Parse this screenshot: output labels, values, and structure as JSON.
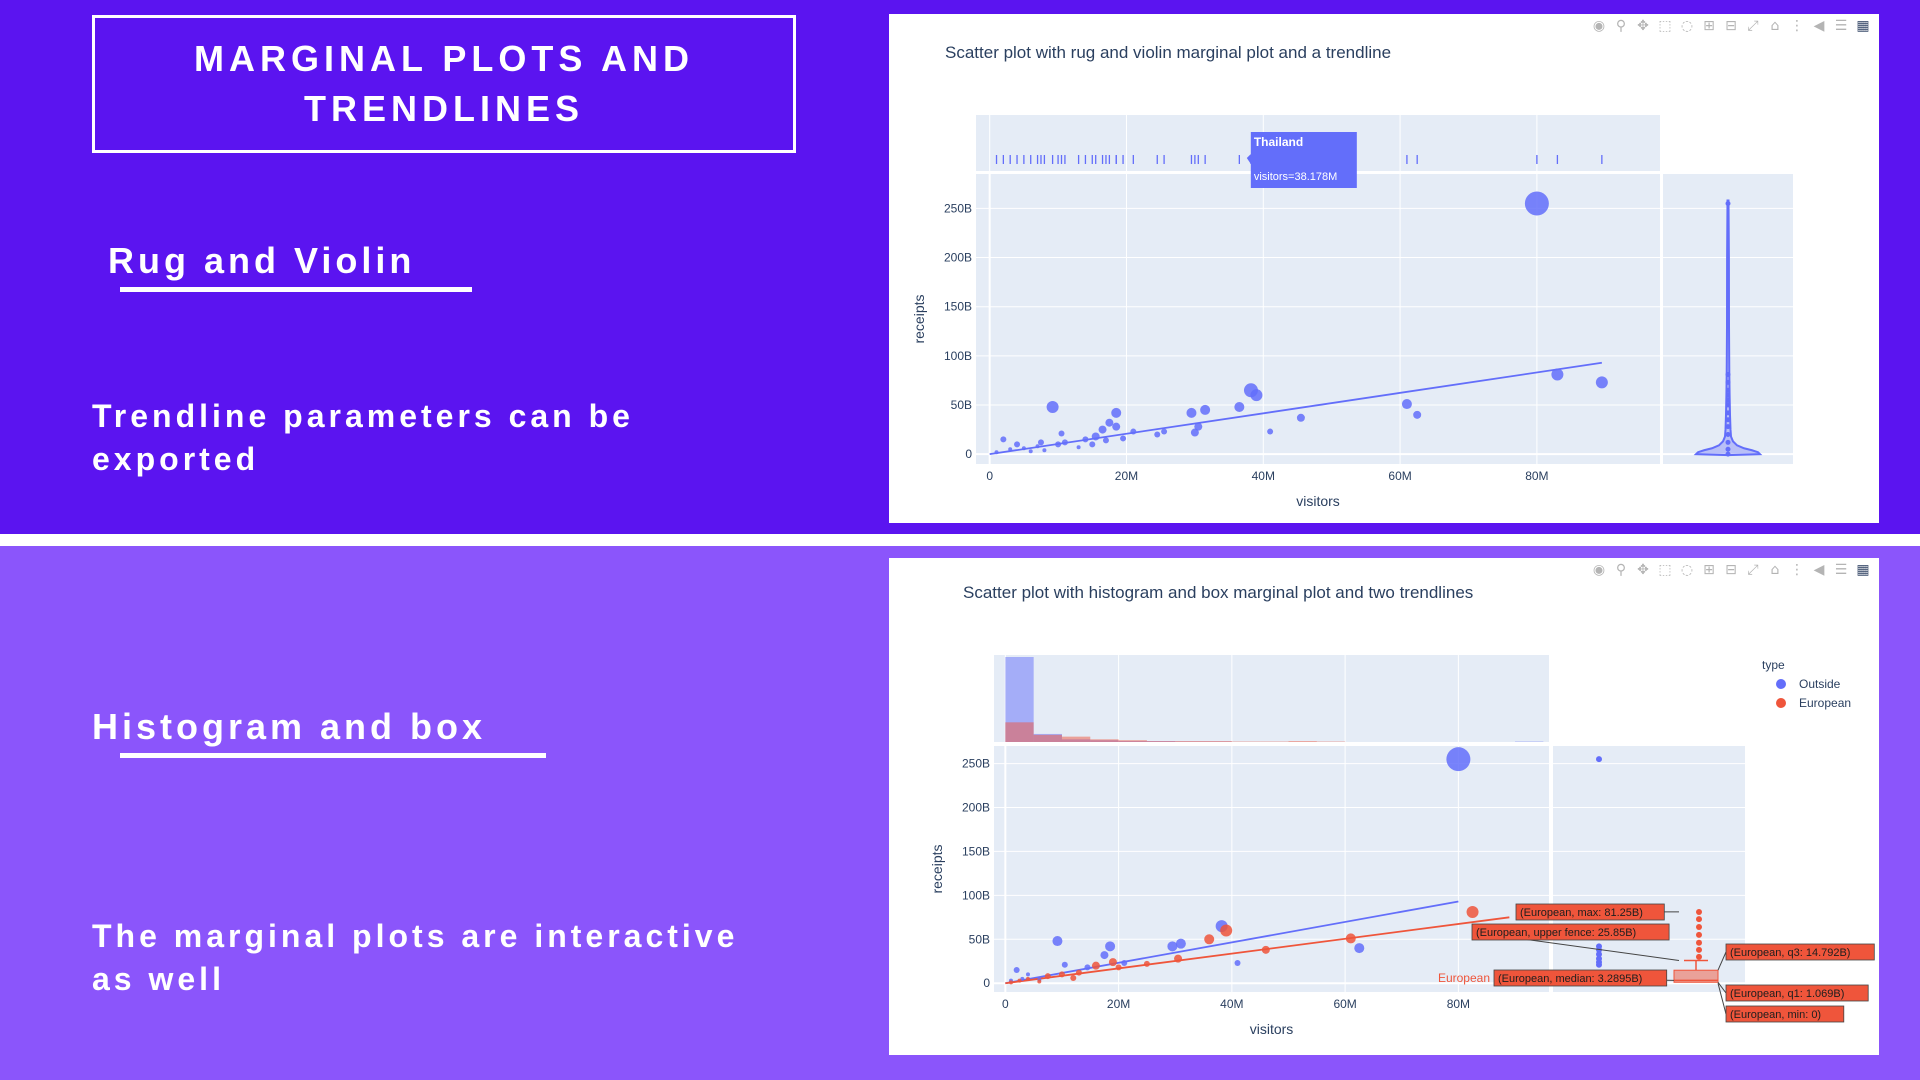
{
  "slide": {
    "title": "MARGINAL PLOTS AND TRENDLINES",
    "section1": {
      "heading": "Rug and Violin",
      "text": "Trendline parameters can be exported"
    },
    "section2": {
      "heading": "Histogram and box",
      "text": "The marginal plots are interactive as well"
    }
  },
  "colors": {
    "top_band": "#5b14f0",
    "bottom_band": "#8b55fb",
    "plot_bg": "#e5ecf6",
    "outside": "#636efa",
    "european": "#ef553b"
  },
  "modebar_icons": [
    "camera-icon",
    "zoom-icon",
    "pan-icon",
    "box-select-icon",
    "lasso-icon",
    "zoom-in-icon",
    "zoom-out-icon",
    "autoscale-icon",
    "reset-axes-icon",
    "spike-lines-icon",
    "hover-closest-icon",
    "hover-compare-icon",
    "plotly-logo-icon"
  ],
  "chart_data": [
    {
      "type": "scatter",
      "title": "Scatter plot with rug and violin marginal plot and a trendline",
      "xlabel": "visitors",
      "ylabel": "receipts",
      "xlim": [
        -2,
        98
      ],
      "ylim": [
        -10,
        285
      ],
      "x_ticks": [
        0,
        20,
        40,
        60,
        80
      ],
      "x_tick_labels": [
        "0",
        "20M",
        "40M",
        "60M",
        "80M"
      ],
      "y_ticks": [
        0,
        50,
        100,
        150,
        200,
        250
      ],
      "y_tick_labels": [
        "0",
        "50B",
        "100B",
        "150B",
        "200B",
        "250B"
      ],
      "marginal_x": "rug",
      "marginal_y": "violin",
      "points": [
        {
          "x": 1,
          "y": 2,
          "s": 2
        },
        {
          "x": 2,
          "y": 15,
          "s": 3
        },
        {
          "x": 3,
          "y": 5,
          "s": 2
        },
        {
          "x": 4,
          "y": 10,
          "s": 3
        },
        {
          "x": 5,
          "y": 6,
          "s": 2
        },
        {
          "x": 6,
          "y": 3,
          "s": 2
        },
        {
          "x": 7,
          "y": 8,
          "s": 2
        },
        {
          "x": 7.5,
          "y": 12,
          "s": 3
        },
        {
          "x": 8,
          "y": 4,
          "s": 2
        },
        {
          "x": 9.2,
          "y": 48,
          "s": 6
        },
        {
          "x": 10,
          "y": 10,
          "s": 3
        },
        {
          "x": 10.5,
          "y": 21,
          "s": 3
        },
        {
          "x": 11,
          "y": 12,
          "s": 3
        },
        {
          "x": 13,
          "y": 7,
          "s": 2
        },
        {
          "x": 14,
          "y": 15,
          "s": 3
        },
        {
          "x": 15,
          "y": 10,
          "s": 3
        },
        {
          "x": 15.5,
          "y": 18,
          "s": 4
        },
        {
          "x": 16.5,
          "y": 25,
          "s": 4
        },
        {
          "x": 17,
          "y": 14,
          "s": 3
        },
        {
          "x": 17.5,
          "y": 32,
          "s": 4
        },
        {
          "x": 18.5,
          "y": 28,
          "s": 4
        },
        {
          "x": 18.5,
          "y": 42,
          "s": 5
        },
        {
          "x": 19.5,
          "y": 16,
          "s": 3
        },
        {
          "x": 21,
          "y": 23,
          "s": 3
        },
        {
          "x": 24.5,
          "y": 20,
          "s": 3
        },
        {
          "x": 25.5,
          "y": 23,
          "s": 3
        },
        {
          "x": 29.5,
          "y": 42,
          "s": 5
        },
        {
          "x": 30,
          "y": 22,
          "s": 4
        },
        {
          "x": 30.5,
          "y": 28,
          "s": 4
        },
        {
          "x": 31.5,
          "y": 45,
          "s": 5
        },
        {
          "x": 36.5,
          "y": 48,
          "s": 5
        },
        {
          "x": 38.2,
          "y": 65,
          "s": 7
        },
        {
          "x": 39,
          "y": 60,
          "s": 6
        },
        {
          "x": 41,
          "y": 23,
          "s": 3
        },
        {
          "x": 45.5,
          "y": 37,
          "s": 4
        },
        {
          "x": 61,
          "y": 51,
          "s": 5
        },
        {
          "x": 62.5,
          "y": 40,
          "s": 4
        },
        {
          "x": 80,
          "y": 255,
          "s": 12
        },
        {
          "x": 83,
          "y": 81,
          "s": 6
        },
        {
          "x": 89.5,
          "y": 73,
          "s": 6
        }
      ],
      "trendline": {
        "x": [
          0,
          89.5
        ],
        "y": [
          0,
          93
        ]
      },
      "hover": {
        "label": "Thailand",
        "text": "visitors=38.178M",
        "x": 38.178
      }
    },
    {
      "type": "scatter",
      "title": "Scatter plot with histogram and box marginal plot and two trendlines",
      "xlabel": "visitors",
      "ylabel": "receipts",
      "xlim": [
        -2,
        96
      ],
      "ylim": [
        -10,
        270
      ],
      "x_ticks": [
        0,
        20,
        40,
        60,
        80
      ],
      "x_tick_labels": [
        "0",
        "20M",
        "40M",
        "60M",
        "80M"
      ],
      "y_ticks": [
        0,
        50,
        100,
        150,
        200,
        250
      ],
      "y_tick_labels": [
        "0",
        "50B",
        "100B",
        "150B",
        "200B",
        "250B"
      ],
      "marginal_x": "histogram",
      "marginal_y": "box",
      "legend": {
        "title": "type",
        "position": "top-right"
      },
      "series": [
        {
          "name": "Outside",
          "color": "#636efa",
          "points": [
            {
              "x": 1,
              "y": 3,
              "s": 2
            },
            {
              "x": 2,
              "y": 15,
              "s": 3
            },
            {
              "x": 3,
              "y": 5,
              "s": 2
            },
            {
              "x": 4,
              "y": 10,
              "s": 2
            },
            {
              "x": 6,
              "y": 4,
              "s": 2
            },
            {
              "x": 9.2,
              "y": 48,
              "s": 5
            },
            {
              "x": 10.5,
              "y": 21,
              "s": 3
            },
            {
              "x": 14.5,
              "y": 18,
              "s": 3
            },
            {
              "x": 17.5,
              "y": 32,
              "s": 4
            },
            {
              "x": 18.5,
              "y": 42,
              "s": 5
            },
            {
              "x": 21,
              "y": 23,
              "s": 3
            },
            {
              "x": 29.5,
              "y": 42,
              "s": 5
            },
            {
              "x": 31,
              "y": 45,
              "s": 5
            },
            {
              "x": 38.2,
              "y": 65,
              "s": 6
            },
            {
              "x": 41,
              "y": 23,
              "s": 3
            },
            {
              "x": 62.5,
              "y": 40,
              "s": 5
            },
            {
              "x": 80,
              "y": 255,
              "s": 12
            }
          ],
          "trendline": {
            "x": [
              0,
              80
            ],
            "y": [
              0,
              93
            ]
          },
          "hist": [
            95,
            9,
            3,
            2,
            1,
            1,
            0.5,
            0.5,
            0,
            0,
            0,
            0,
            0,
            0,
            0,
            0,
            0,
            0,
            0.5,
            0
          ]
        },
        {
          "name": "European",
          "color": "#ef553b",
          "points": [
            {
              "x": 1,
              "y": 1,
              "s": 2
            },
            {
              "x": 2.5,
              "y": 3,
              "s": 2
            },
            {
              "x": 4,
              "y": 5,
              "s": 2
            },
            {
              "x": 6,
              "y": 2,
              "s": 2
            },
            {
              "x": 7.5,
              "y": 8,
              "s": 3
            },
            {
              "x": 10,
              "y": 10,
              "s": 3
            },
            {
              "x": 12,
              "y": 6,
              "s": 3
            },
            {
              "x": 13,
              "y": 12,
              "s": 3
            },
            {
              "x": 16,
              "y": 20,
              "s": 4
            },
            {
              "x": 19,
              "y": 24,
              "s": 4
            },
            {
              "x": 20,
              "y": 18,
              "s": 3
            },
            {
              "x": 25,
              "y": 22,
              "s": 3
            },
            {
              "x": 30.5,
              "y": 28,
              "s": 4
            },
            {
              "x": 36,
              "y": 50,
              "s": 5
            },
            {
              "x": 39,
              "y": 60,
              "s": 6
            },
            {
              "x": 46,
              "y": 38,
              "s": 4
            },
            {
              "x": 61,
              "y": 51,
              "s": 5
            },
            {
              "x": 82.5,
              "y": 81,
              "s": 6
            }
          ],
          "trendline": {
            "x": [
              0,
              89
            ],
            "y": [
              0,
              75
            ]
          },
          "hist": [
            22,
            8,
            6,
            3,
            2,
            1,
            1,
            1,
            0.5,
            0.5,
            1,
            0.5,
            0,
            0,
            0,
            0,
            0,
            0,
            0,
            0
          ]
        }
      ],
      "box_outside": {
        "points": [
          255,
          42,
          38,
          33,
          28,
          24,
          21
        ]
      },
      "box_european": {
        "min": 0,
        "q1": 1.069,
        "median": 3.2895,
        "q3": 14.792,
        "upper_fence": 25.85,
        "max": 81.25,
        "outliers": [
          81,
          73,
          64,
          55,
          46,
          38,
          30
        ]
      },
      "box_labels": {
        "max": "(European, max: 81.25B)",
        "upper_fence": "(European, upper fence: 25.85B)",
        "q3": "(European, q3: 14.792B)",
        "median": "(European, median: 3.2895B)",
        "q1": "(European, q1: 1.069B)",
        "min": "(European, min: 0)",
        "trace": "European"
      }
    }
  ]
}
